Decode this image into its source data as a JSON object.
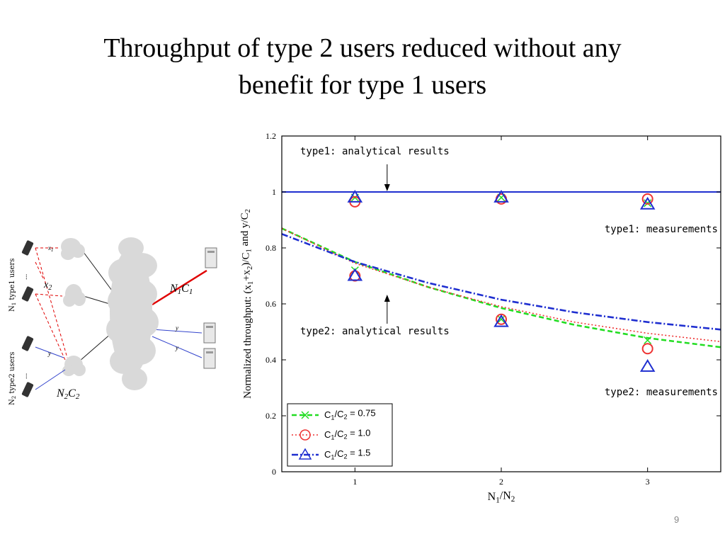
{
  "slide": {
    "title_line1": "Throughput of type 2 users reduced without any",
    "title_line2": "benefit for type 1 users",
    "page_number": "9"
  },
  "network": {
    "type1_label": "N",
    "type1_label_sub": "1",
    "type1_label_rest": " type1 users",
    "type2_label": "N",
    "type2_label_sub": "2",
    "type2_label_rest": " type2 users",
    "x1": "x",
    "x1_sub": "1",
    "x2": "x",
    "x2_sub": "2",
    "y_top": "y",
    "y_mid": "y",
    "y_bot": "y",
    "n1c1": "N",
    "n1c1_sub1": "1",
    "n1c1_c": "C",
    "n1c1_sub2": "1",
    "n2c2": "N",
    "n2c2_sub1": "2",
    "n2c2_c": "C",
    "n2c2_sub2": "2",
    "ellipsis": "..."
  },
  "chart_data": {
    "type": "line",
    "ylabel_parts": [
      "Normalized throughput: (x",
      "1",
      "+x",
      "2",
      ")/C",
      "1",
      " and y/C",
      "2"
    ],
    "xlabel_parts": [
      "N",
      "1",
      "/N",
      "2"
    ],
    "xlim": [
      0.5,
      3.5
    ],
    "ylim": [
      0,
      1.2
    ],
    "x_ticks": [
      1,
      2,
      3
    ],
    "x_tick_labels": [
      "1",
      "2",
      "3"
    ],
    "y_ticks": [
      0,
      0.2,
      0.4,
      0.6,
      0.8,
      1,
      1.2
    ],
    "y_tick_labels": [
      "0",
      "0.2",
      "0.4",
      "0.6",
      "0.8",
      "1",
      "1.2"
    ],
    "colors": {
      "green": "#22dd22",
      "red": "#ee3333",
      "blue": "#1f2fd0"
    },
    "type1_analytical": {
      "x": [
        0.5,
        3.5
      ],
      "y": [
        1.0,
        1.0
      ]
    },
    "series": [
      {
        "name": "C1/C2 = 0.75",
        "legend_parts": [
          "C",
          "1",
          "/C",
          "2",
          " = 0.75"
        ],
        "color": "#22dd22",
        "marker": "x",
        "line_x": [
          0.5,
          1,
          1.5,
          2,
          2.5,
          3,
          3.5
        ],
        "line_y": [
          0.87,
          0.75,
          0.66,
          0.585,
          0.525,
          0.478,
          0.445
        ],
        "meas_x": [
          1,
          1,
          2,
          2,
          3,
          3
        ],
        "meas_y": [
          0.98,
          0.72,
          0.98,
          0.545,
          0.96,
          0.47
        ]
      },
      {
        "name": "C1/C2 = 1.0",
        "legend_parts": [
          "C",
          "1",
          "/C",
          "2",
          " = 1.0"
        ],
        "color": "#ee3333",
        "marker": "o",
        "line_x": [
          0.5,
          1,
          1.5,
          2,
          2.5,
          3,
          3.5
        ],
        "line_y": [
          0.87,
          0.745,
          0.66,
          0.59,
          0.535,
          0.495,
          0.465
        ],
        "meas_x": [
          1,
          1,
          2,
          2,
          3,
          3
        ],
        "meas_y": [
          0.965,
          0.7,
          0.975,
          0.545,
          0.975,
          0.44
        ]
      },
      {
        "name": "C1/C2 = 1.5",
        "legend_parts": [
          "C",
          "1",
          "/C",
          "2",
          " = 1.5"
        ],
        "color": "#1f2fd0",
        "marker": "triangle",
        "line_x": [
          0.5,
          1,
          1.5,
          2,
          2.5,
          3,
          3.5
        ],
        "line_y": [
          0.85,
          0.75,
          0.675,
          0.615,
          0.57,
          0.535,
          0.508
        ],
        "meas_x": [
          1,
          1,
          2,
          2,
          3,
          3
        ],
        "meas_y": [
          0.98,
          0.7,
          0.98,
          0.535,
          0.955,
          0.375
        ]
      }
    ],
    "annotations": [
      {
        "text": "type1: analytical results",
        "arrow": "down"
      },
      {
        "text": "type1: measurements",
        "arrow": "none"
      },
      {
        "text": "type2: analytical results",
        "arrow": "up"
      },
      {
        "text": "type2: measurements",
        "arrow": "none"
      }
    ]
  }
}
